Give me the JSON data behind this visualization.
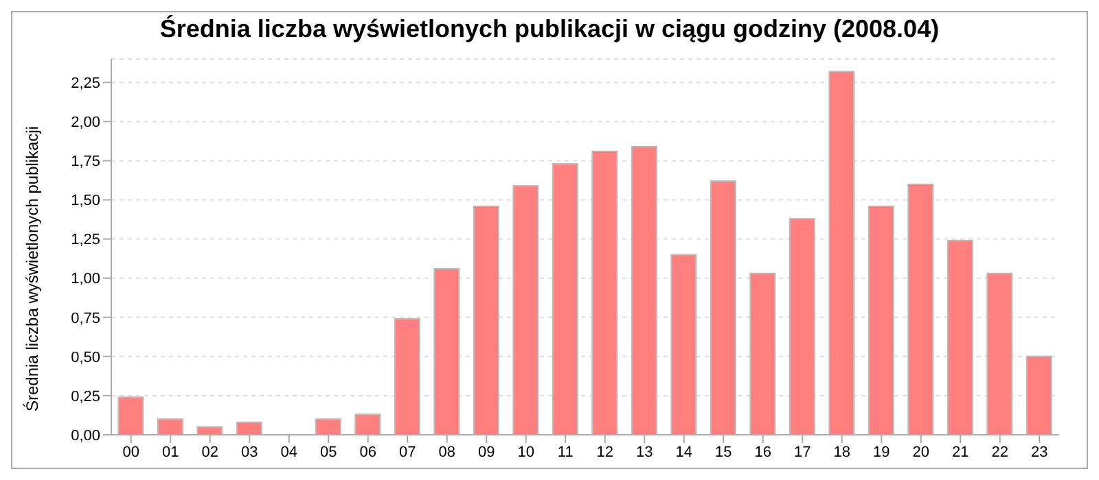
{
  "chart_data": {
    "type": "bar",
    "title": "Średnia liczba wyświetlonych publikacji w ciągu godziny (2008.04)",
    "ylabel": "Średnia liczba wyświetlonych publikacji",
    "categories": [
      "00",
      "01",
      "02",
      "03",
      "04",
      "05",
      "06",
      "07",
      "08",
      "09",
      "10",
      "11",
      "12",
      "13",
      "14",
      "15",
      "16",
      "17",
      "18",
      "19",
      "20",
      "21",
      "22",
      "23"
    ],
    "values": [
      0.24,
      0.1,
      0.05,
      0.08,
      0,
      0.1,
      0.13,
      0.74,
      1.06,
      1.46,
      1.59,
      1.73,
      1.81,
      1.84,
      1.15,
      1.62,
      1.03,
      1.38,
      2.32,
      1.46,
      1.6,
      1.24,
      1.03,
      0.5
    ],
    "color": "#ff7f7f",
    "ylim": [
      0,
      2.4
    ],
    "yticks": [
      {
        "value": 0,
        "label": "0,00"
      },
      {
        "value": 0.25,
        "label": "0,25"
      },
      {
        "value": 0.5,
        "label": "0,50"
      },
      {
        "value": 0.75,
        "label": "0,75"
      },
      {
        "value": 1,
        "label": "1,00"
      },
      {
        "value": 1.25,
        "label": "1,25"
      },
      {
        "value": 1.5,
        "label": "1,50"
      },
      {
        "value": 1.75,
        "label": "1,75"
      },
      {
        "value": 2,
        "label": "2,00"
      },
      {
        "value": 2.25,
        "label": "2,25"
      }
    ],
    "grid": "y",
    "legend": false
  }
}
